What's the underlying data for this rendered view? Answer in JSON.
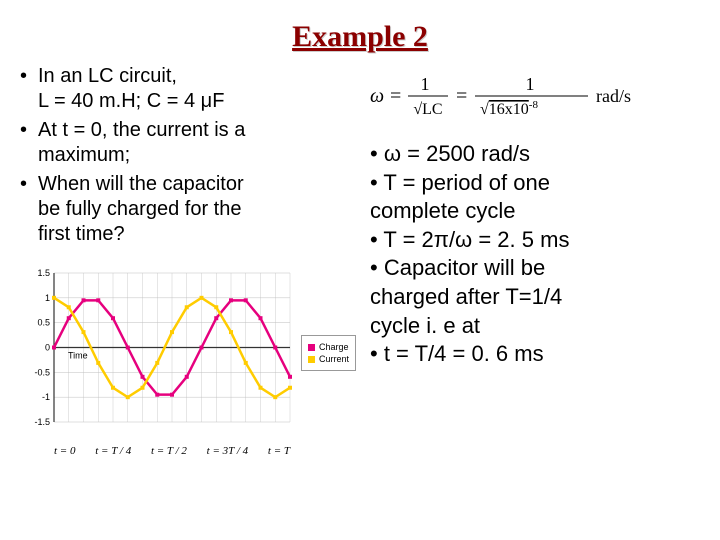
{
  "title": "Example 2",
  "problem": {
    "b1a": "In an LC circuit,",
    "b1b": "L = 40 m.H; C = 4 μF",
    "b2a": "At t = 0, the current is a",
    "b2b": "maximum;",
    "b3a": "When will the capacitor",
    "b3b": "be fully charged for the",
    "b3c": "first time?"
  },
  "formula": {
    "lhs": "ω =",
    "mid_top": "1",
    "mid_bot": "√LC",
    "eq": "=",
    "rhs_top": "1",
    "rhs_bot": "√16x10⁻⁸",
    "unit": "rad/s"
  },
  "answers": {
    "a1": "ω = 2500 rad/s",
    "a2": "T = period of one",
    "a2b": "complete cycle",
    "a3": "T = 2π/ω = 2. 5 ms",
    "a4": "Capacitor will be",
    "a4b": "charged after T=1/4",
    "a4c": "cycle i. e at",
    "a5": "t = T/4 = 0. 6 ms"
  },
  "chart": {
    "ylabels": [
      "1.5",
      "1",
      "0.5",
      "0",
      "-0.5",
      "-1",
      "-1.5"
    ],
    "time_label": "Time",
    "xlabels": [
      "t = 0",
      "t = T / 4",
      "t = T / 2",
      "t = 3T / 4",
      "t = T"
    ],
    "legend": {
      "charge": "Charge",
      "current": "Current"
    },
    "colors": {
      "charge": "#e6007e",
      "current": "#ffcc00",
      "grid": "#bfbfbf",
      "axis": "#333333"
    },
    "series": {
      "charge": [
        0.0,
        0.59,
        0.95,
        0.95,
        0.59,
        0.0,
        -0.59,
        -0.95,
        -0.95,
        -0.59,
        0.0,
        0.59,
        0.95,
        0.95,
        0.59,
        0.0,
        -0.59
      ],
      "current": [
        1.0,
        0.81,
        0.31,
        -0.31,
        -0.81,
        -1.0,
        -0.81,
        -0.31,
        0.31,
        0.81,
        1.0,
        0.81,
        0.31,
        -0.31,
        -0.81,
        -1.0,
        -0.81
      ]
    },
    "ylim": [
      -1.5,
      1.5
    ]
  }
}
